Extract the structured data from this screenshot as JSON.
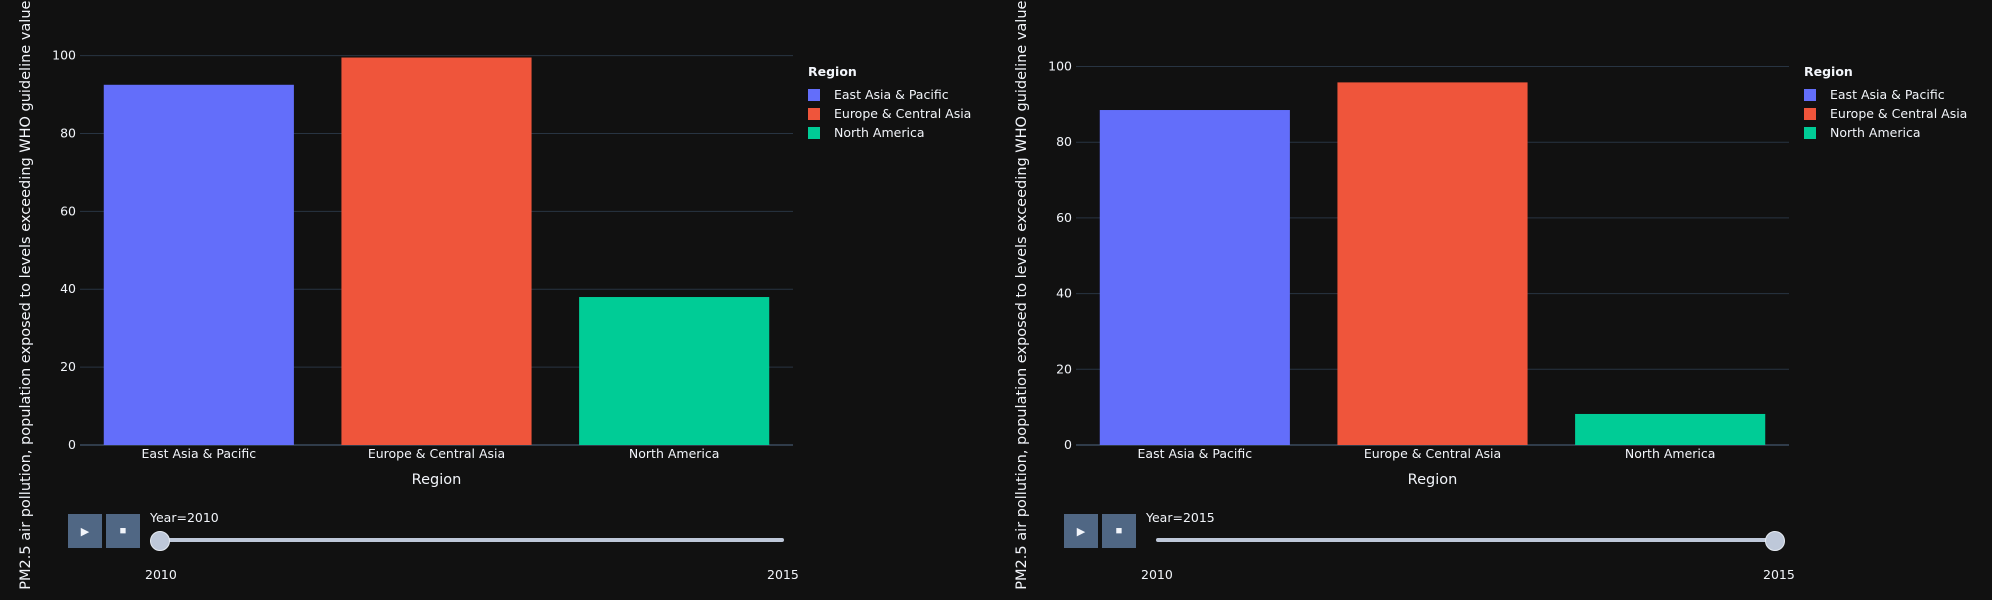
{
  "colors": {
    "background": "#111111",
    "grid": "#283442",
    "text": "#f2f5fa",
    "button": "#506784",
    "slider": "#bec8d9"
  },
  "legend": {
    "title": "Region",
    "items": [
      {
        "label": "East Asia & Pacific",
        "color": "#636efa"
      },
      {
        "label": "Europe & Central Asia",
        "color": "#ef553b"
      },
      {
        "label": "North America",
        "color": "#00cc96"
      }
    ]
  },
  "controls": {
    "play_icon": "play-icon",
    "stop_icon": "stop-icon",
    "play_glyph": "▶",
    "stop_glyph": "■"
  },
  "panels": [
    {
      "current_label": "Year=2010",
      "slider_value": 0,
      "slider_ticks": [
        "2010",
        "2015"
      ]
    },
    {
      "current_label": "Year=2015",
      "slider_value": 1,
      "slider_ticks": [
        "2010",
        "2015"
      ]
    }
  ],
  "chart_data": [
    {
      "type": "bar",
      "title": "",
      "xlabel": "Region",
      "ylabel": "PM2.5 air pollution, population exposed to levels exceeding WHO guideline value (",
      "categories": [
        "East Asia & Pacific",
        "Europe & Central Asia",
        "North America"
      ],
      "values": [
        92.5,
        99.5,
        38
      ],
      "colors": [
        "#636efa",
        "#ef553b",
        "#00cc96"
      ],
      "ylim": [
        0,
        104
      ],
      "yticks": [
        0,
        20,
        40,
        60,
        80,
        100
      ],
      "year": 2010,
      "grid": true,
      "legend_position": "right"
    },
    {
      "type": "bar",
      "title": "",
      "xlabel": "Region",
      "ylabel": "PM2.5 air pollution, population exposed to levels exceeding WHO guideline value (",
      "categories": [
        "East Asia & Pacific",
        "Europe & Central Asia",
        "North America"
      ],
      "values": [
        88.5,
        95.8,
        8.2
      ],
      "colors": [
        "#636efa",
        "#ef553b",
        "#00cc96"
      ],
      "ylim": [
        0,
        107
      ],
      "yticks": [
        0,
        20,
        40,
        60,
        80,
        100
      ],
      "year": 2015,
      "grid": true,
      "legend_position": "right"
    }
  ]
}
